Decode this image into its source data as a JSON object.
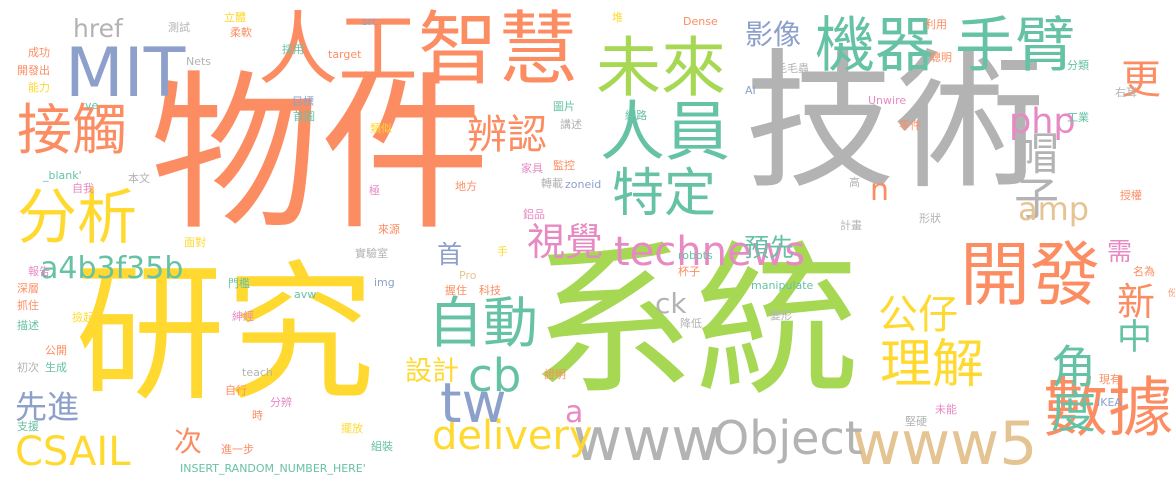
{
  "palette": {
    "orange": "#fc8d62",
    "gray": "#b3b3b3",
    "yellow": "#ffd92f",
    "green": "#a6d854",
    "blue": "#8da0cb",
    "pink": "#e78ac3",
    "teal": "#66c2a5",
    "tan": "#e5c494"
  },
  "words": [
    {
      "text": "物件",
      "color": "orange"
    },
    {
      "text": "技術",
      "color": "gray"
    },
    {
      "text": "系統",
      "color": "green"
    },
    {
      "text": "研究",
      "color": "yellow"
    },
    {
      "text": "人工智慧",
      "color": "orange"
    },
    {
      "text": "機器",
      "color": "teal"
    },
    {
      "text": "手臂",
      "color": "teal"
    },
    {
      "text": "MIT",
      "color": "blue"
    },
    {
      "text": "未來",
      "color": "green"
    },
    {
      "text": "人員",
      "color": "teal"
    },
    {
      "text": "開發",
      "color": "orange"
    },
    {
      "text": "分析",
      "color": "yellow"
    },
    {
      "text": "接觸",
      "color": "orange"
    },
    {
      "text": "technews",
      "color": "pink"
    },
    {
      "text": "自動",
      "color": "teal"
    },
    {
      "text": "www5",
      "color": "tan"
    },
    {
      "text": "數據",
      "color": "orange"
    },
    {
      "text": "www",
      "color": "gray"
    },
    {
      "text": "Object",
      "color": "gray"
    },
    {
      "text": "delivery",
      "color": "yellow"
    },
    {
      "text": "理解",
      "color": "yellow"
    },
    {
      "text": "特定",
      "color": "teal"
    },
    {
      "text": "辨認",
      "color": "orange"
    },
    {
      "text": "CSAIL",
      "color": "yellow"
    },
    {
      "text": "tw",
      "color": "blue"
    },
    {
      "text": "cb",
      "color": "teal"
    },
    {
      "text": "視覺",
      "color": "pink"
    },
    {
      "text": "帽子",
      "color": "gray"
    },
    {
      "text": "角度",
      "color": "teal"
    },
    {
      "text": "公仔",
      "color": "yellow"
    },
    {
      "text": "php",
      "color": "pink"
    },
    {
      "text": "amp",
      "color": "tan"
    },
    {
      "text": "影像",
      "color": "blue"
    },
    {
      "text": "a4b3f35b",
      "color": "teal"
    },
    {
      "text": "href",
      "color": "gray"
    },
    {
      "text": "先進",
      "color": "blue"
    },
    {
      "text": "更",
      "color": "orange"
    },
    {
      "text": "新",
      "color": "orange"
    },
    {
      "text": "中",
      "color": "teal"
    },
    {
      "text": "需",
      "color": "pink"
    },
    {
      "text": "ck",
      "color": "gray"
    },
    {
      "text": "n",
      "color": "orange"
    },
    {
      "text": "a",
      "color": "pink"
    },
    {
      "text": "首",
      "color": "blue"
    },
    {
      "text": "次",
      "color": "orange"
    },
    {
      "text": "設計",
      "color": "yellow"
    },
    {
      "text": "預先",
      "color": "teal"
    },
    {
      "text": "INSERT_RANDOM_NUMBER_HERE'",
      "color": "teal"
    },
    {
      "text": "測試",
      "color": "gray"
    },
    {
      "text": "立體",
      "color": "yellow"
    },
    {
      "text": "柔軟",
      "color": "orange"
    },
    {
      "text": "src",
      "color": "blue"
    },
    {
      "text": "採用",
      "color": "teal"
    },
    {
      "text": "target",
      "color": "orange"
    },
    {
      "text": "堆",
      "color": "yellow"
    },
    {
      "text": "Dense",
      "color": "orange"
    },
    {
      "text": "利用",
      "color": "orange"
    },
    {
      "text": "聰明",
      "color": "orange"
    },
    {
      "text": "分類",
      "color": "teal"
    },
    {
      "text": "成功",
      "color": "orange"
    },
    {
      "text": "開發出",
      "color": "orange"
    },
    {
      "text": "能力",
      "color": "yellow"
    },
    {
      "text": "Nets",
      "color": "gray"
    },
    {
      "text": "毛毛蟲",
      "color": "gray"
    },
    {
      "text": "右耳",
      "color": "gray"
    },
    {
      "text": "ve",
      "color": "teal"
    },
    {
      "text": "目標",
      "color": "blue"
    },
    {
      "text": "首圖",
      "color": "teal"
    },
    {
      "text": "類似",
      "color": "yellow"
    },
    {
      "text": "圖片",
      "color": "teal"
    },
    {
      "text": "網路",
      "color": "teal"
    },
    {
      "text": "AI",
      "color": "blue"
    },
    {
      "text": "Unwire",
      "color": "pink"
    },
    {
      "text": "工業",
      "color": "teal"
    },
    {
      "text": "講述",
      "color": "gray"
    },
    {
      "text": "零件",
      "color": "orange"
    },
    {
      "text": "_blank'",
      "color": "teal"
    },
    {
      "text": "本文",
      "color": "gray"
    },
    {
      "text": "家具",
      "color": "pink"
    },
    {
      "text": "監控",
      "color": "orange"
    },
    {
      "text": "轉載",
      "color": "gray"
    },
    {
      "text": "zoneid",
      "color": "blue"
    },
    {
      "text": "高",
      "color": "gray"
    },
    {
      "text": "自我",
      "color": "pink"
    },
    {
      "text": "極",
      "color": "pink"
    },
    {
      "text": "地方",
      "color": "orange"
    },
    {
      "text": "形狀",
      "color": "gray"
    },
    {
      "text": "鋁品",
      "color": "pink"
    },
    {
      "text": "計畫",
      "color": "gray"
    },
    {
      "text": "授權",
      "color": "orange"
    },
    {
      "text": "來源",
      "color": "orange"
    },
    {
      "text": "面對",
      "color": "yellow"
    },
    {
      "text": "手",
      "color": "yellow"
    },
    {
      "text": "名為",
      "color": "orange"
    },
    {
      "text": "實驗室",
      "color": "gray"
    },
    {
      "text": "robots",
      "color": "teal"
    },
    {
      "text": "杯子",
      "color": "orange"
    },
    {
      "text": "報告",
      "color": "pink"
    },
    {
      "text": "門檻",
      "color": "teal"
    },
    {
      "text": "img",
      "color": "blue"
    },
    {
      "text": "Pro",
      "color": "tan"
    },
    {
      "text": "manipulate",
      "color": "teal"
    },
    {
      "text": "深層",
      "color": "orange"
    },
    {
      "text": "avw",
      "color": "teal"
    },
    {
      "text": "握住",
      "color": "orange"
    },
    {
      "text": "科技",
      "color": "orange"
    },
    {
      "text": "份",
      "color": "orange"
    },
    {
      "text": "抓住",
      "color": "orange"
    },
    {
      "text": "撿起",
      "color": "yellow"
    },
    {
      "text": "紳經",
      "color": "pink"
    },
    {
      "text": "降低",
      "color": "gray"
    },
    {
      "text": "描述",
      "color": "teal"
    },
    {
      "text": "公開",
      "color": "orange"
    },
    {
      "text": "變形",
      "color": "gray"
    },
    {
      "text": "初次",
      "color": "gray"
    },
    {
      "text": "生成",
      "color": "teal"
    },
    {
      "text": "teach",
      "color": "gray"
    },
    {
      "text": "證明",
      "color": "orange"
    },
    {
      "text": "現有",
      "color": "orange"
    },
    {
      "text": "自行",
      "color": "orange"
    },
    {
      "text": "時",
      "color": "orange"
    },
    {
      "text": "分辨",
      "color": "pink"
    },
    {
      "text": "IKEA",
      "color": "blue"
    },
    {
      "text": "支援",
      "color": "teal"
    },
    {
      "text": "進一步",
      "color": "orange"
    },
    {
      "text": "擺放",
      "color": "yellow"
    },
    {
      "text": "未能",
      "color": "pink"
    },
    {
      "text": "堅硬",
      "color": "gray"
    },
    {
      "text": "組裝",
      "color": "teal"
    }
  ]
}
